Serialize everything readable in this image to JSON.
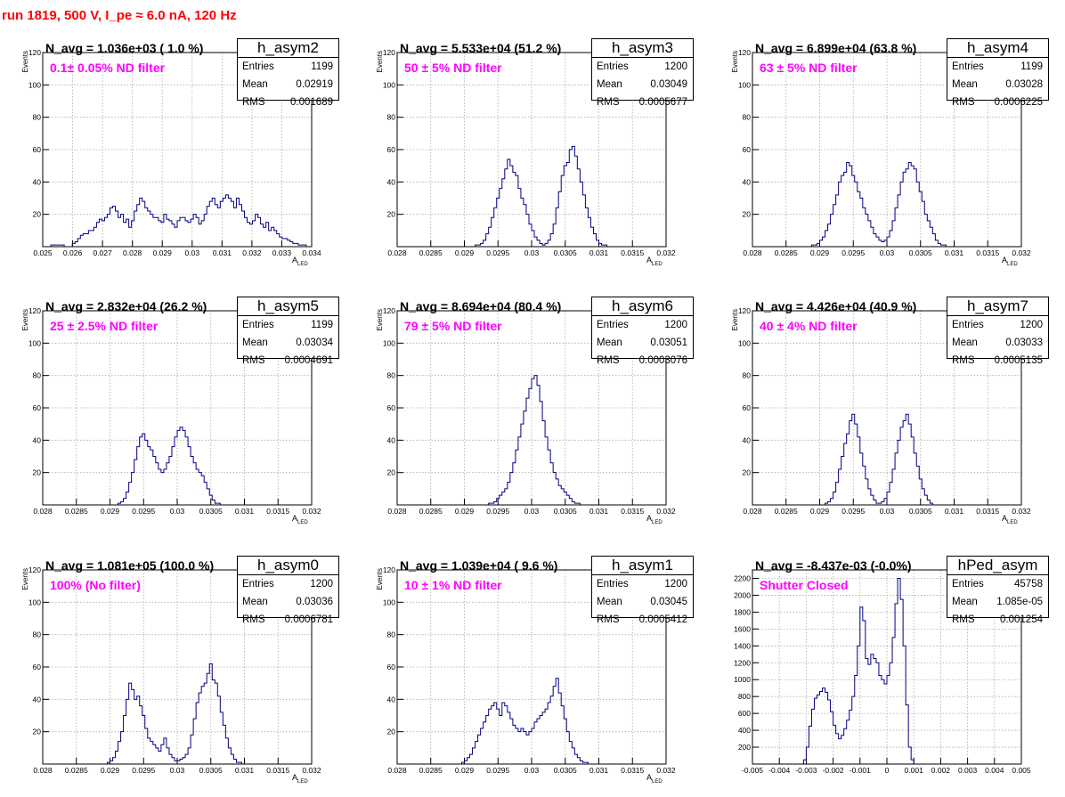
{
  "header": {
    "title": "run 1819,   500 V, I_pe ≈ 6.0 nA, 120 Hz"
  },
  "colors": {
    "hist": "#000080",
    "title": "#ff0000",
    "filter": "#ff00ff"
  },
  "chart_data": [
    {
      "type": "bar",
      "name": "h_asym2",
      "navg": "N_avg = 1.036e+03 ( 1.0 %)",
      "filter": "0.1± 0.05% ND filter",
      "stats": {
        "entries": "1199",
        "mean": "0.02919",
        "rms": "0.001689"
      },
      "ylabel": "Events",
      "xlabel": "A_LED",
      "xlim": [
        0.025,
        0.034
      ],
      "ylim": [
        0,
        120
      ],
      "xticks": [
        "0.025",
        "0.026",
        "0.027",
        "0.028",
        "0.029",
        "0.03",
        "0.031",
        "0.032",
        "0.033",
        "0.034"
      ],
      "yticks": [
        "20",
        "40",
        "60",
        "80",
        "100",
        "120"
      ],
      "bin_start": 0.025,
      "bin_width": 9e-05,
      "values": [
        0,
        0,
        0,
        1,
        1,
        1,
        1,
        1,
        0,
        0,
        0,
        2,
        3,
        5,
        7,
        8,
        8,
        10,
        10,
        12,
        15,
        17,
        16,
        18,
        20,
        24,
        25,
        22,
        18,
        20,
        15,
        17,
        12,
        16,
        22,
        26,
        30,
        28,
        24,
        22,
        20,
        18,
        18,
        16,
        15,
        20,
        17,
        16,
        14,
        12,
        16,
        18,
        18,
        16,
        15,
        17,
        20,
        18,
        14,
        16,
        20,
        25,
        28,
        30,
        26,
        24,
        28,
        30,
        32,
        30,
        28,
        24,
        30,
        26,
        22,
        18,
        15,
        14,
        16,
        20,
        18,
        14,
        12,
        15,
        10,
        12,
        10,
        8,
        6,
        5,
        5,
        4,
        3,
        2,
        2,
        1,
        1,
        1,
        0,
        0
      ]
    },
    {
      "type": "bar",
      "name": "h_asym3",
      "navg": "N_avg = 5.533e+04 (51.2 %)",
      "filter": "50 ± 5% ND filter",
      "stats": {
        "entries": "1200",
        "mean": "0.03049",
        "rms": "0.0005677"
      },
      "ylabel": "Events",
      "xlabel": "A_LED",
      "xlim": [
        0.028,
        0.032
      ],
      "ylim": [
        0,
        120
      ],
      "xticks": [
        "0.028",
        "0.0285",
        "0.029",
        "0.0295",
        "0.03",
        "0.0305",
        "0.031",
        "0.0315",
        "0.032"
      ],
      "yticks": [
        "20",
        "40",
        "60",
        "80",
        "100",
        "120"
      ],
      "bin_start": 0.028,
      "bin_width": 4e-05,
      "values": [
        0,
        0,
        0,
        0,
        0,
        0,
        0,
        0,
        0,
        0,
        0,
        0,
        0,
        0,
        0,
        0,
        0,
        0,
        0,
        0,
        0,
        0,
        0,
        0,
        0,
        0,
        0,
        0,
        0,
        1,
        1,
        2,
        4,
        8,
        12,
        18,
        24,
        30,
        36,
        42,
        48,
        54,
        50,
        46,
        44,
        36,
        30,
        26,
        20,
        14,
        10,
        6,
        4,
        2,
        1,
        2,
        4,
        8,
        14,
        24,
        34,
        44,
        50,
        52,
        60,
        62,
        56,
        48,
        40,
        32,
        24,
        18,
        12,
        8,
        4,
        2,
        1,
        1,
        0,
        0,
        0,
        0,
        0,
        0,
        0,
        0,
        0,
        0,
        0,
        0,
        0,
        0,
        0,
        0,
        0,
        0,
        0,
        0,
        0,
        0
      ]
    },
    {
      "type": "bar",
      "name": "h_asym4",
      "navg": "N_avg = 6.899e+04 (63.8 %)",
      "filter": "63 ± 5% ND filter",
      "stats": {
        "entries": "1199",
        "mean": "0.03028",
        "rms": "0.0006225"
      },
      "ylabel": "Events",
      "xlabel": "A_LED",
      "xlim": [
        0.028,
        0.032
      ],
      "ylim": [
        0,
        120
      ],
      "xticks": [
        "0.028",
        "0.0285",
        "0.029",
        "0.0295",
        "0.03",
        "0.0305",
        "0.031",
        "0.0315",
        "0.032"
      ],
      "yticks": [
        "20",
        "40",
        "60",
        "80",
        "100",
        "120"
      ],
      "bin_start": 0.028,
      "bin_width": 4e-05,
      "values": [
        0,
        0,
        0,
        0,
        0,
        0,
        0,
        0,
        0,
        0,
        0,
        0,
        0,
        0,
        0,
        0,
        0,
        0,
        0,
        0,
        0,
        0,
        1,
        1,
        2,
        4,
        6,
        10,
        14,
        20,
        26,
        32,
        40,
        44,
        46,
        52,
        50,
        44,
        40,
        34,
        30,
        24,
        20,
        16,
        12,
        8,
        6,
        4,
        3,
        4,
        6,
        10,
        16,
        24,
        32,
        40,
        46,
        48,
        52,
        50,
        48,
        40,
        34,
        28,
        20,
        16,
        12,
        8,
        4,
        2,
        1,
        1,
        0,
        0,
        0,
        0,
        0,
        0,
        0,
        0,
        0,
        0,
        0,
        0,
        0,
        0,
        0,
        0,
        0,
        0,
        0,
        0,
        0,
        0,
        0,
        0,
        0,
        0,
        0,
        0
      ]
    },
    {
      "type": "bar",
      "name": "h_asym5",
      "navg": "N_avg = 2.832e+04 (26.2 %)",
      "filter": "25 ± 2.5% ND filter",
      "stats": {
        "entries": "1199",
        "mean": "0.03034",
        "rms": "0.0004691"
      },
      "ylabel": "Events",
      "xlabel": "A_LED",
      "xlim": [
        0.028,
        0.032
      ],
      "ylim": [
        0,
        120
      ],
      "xticks": [
        "0.028",
        "0.0285",
        "0.029",
        "0.0295",
        "0.03",
        "0.0305",
        "0.031",
        "0.0315",
        "0.032"
      ],
      "yticks": [
        "20",
        "40",
        "60",
        "80",
        "100",
        "120"
      ],
      "bin_start": 0.028,
      "bin_width": 4e-05,
      "values": [
        0,
        0,
        0,
        0,
        0,
        0,
        0,
        0,
        0,
        0,
        0,
        0,
        0,
        0,
        0,
        0,
        0,
        0,
        0,
        0,
        0,
        0,
        0,
        0,
        0,
        0,
        0,
        0,
        1,
        2,
        4,
        8,
        14,
        20,
        28,
        36,
        42,
        44,
        40,
        36,
        34,
        30,
        26,
        22,
        20,
        22,
        26,
        30,
        36,
        42,
        46,
        48,
        46,
        42,
        36,
        30,
        26,
        22,
        20,
        18,
        14,
        10,
        6,
        3,
        1,
        1,
        0,
        0,
        0,
        0,
        0,
        0,
        0,
        0,
        0,
        0,
        0,
        0,
        0,
        0,
        0,
        0,
        0,
        0,
        0,
        0,
        0,
        0,
        0,
        0,
        0,
        0,
        0,
        0,
        0,
        0,
        0,
        0,
        0,
        0
      ]
    },
    {
      "type": "bar",
      "name": "h_asym6",
      "navg": "N_avg = 8.694e+04 (80.4 %)",
      "filter": "79 ± 5% ND filter",
      "stats": {
        "entries": "1200",
        "mean": "0.03051",
        "rms": "0.0003076"
      },
      "ylabel": "Events",
      "xlabel": "A_LED",
      "xlim": [
        0.028,
        0.032
      ],
      "ylim": [
        0,
        120
      ],
      "xticks": [
        "0.028",
        "0.0285",
        "0.029",
        "0.0295",
        "0.03",
        "0.0305",
        "0.031",
        "0.0315",
        "0.032"
      ],
      "yticks": [
        "20",
        "40",
        "60",
        "80",
        "100",
        "120"
      ],
      "bin_start": 0.028,
      "bin_width": 4e-05,
      "values": [
        0,
        0,
        0,
        0,
        0,
        0,
        0,
        0,
        0,
        0,
        0,
        0,
        0,
        0,
        0,
        0,
        0,
        0,
        0,
        0,
        0,
        0,
        0,
        0,
        0,
        0,
        0,
        0,
        0,
        0,
        0,
        0,
        0,
        0,
        1,
        1,
        2,
        4,
        6,
        8,
        10,
        14,
        20,
        26,
        34,
        42,
        50,
        58,
        66,
        72,
        78,
        80,
        74,
        64,
        52,
        42,
        34,
        26,
        20,
        16,
        12,
        10,
        8,
        6,
        4,
        2,
        1,
        1,
        0,
        0,
        0,
        0,
        0,
        0,
        0,
        0,
        0,
        0,
        0,
        0,
        0,
        0,
        0,
        0,
        0,
        0,
        0,
        0,
        0,
        0,
        0,
        0,
        0,
        0,
        0,
        0,
        0,
        0,
        0,
        0
      ]
    },
    {
      "type": "bar",
      "name": "h_asym7",
      "navg": "N_avg = 4.426e+04 (40.9 %)",
      "filter": "40 ± 4% ND filter",
      "stats": {
        "entries": "1200",
        "mean": "0.03033",
        "rms": "0.0005135"
      },
      "ylabel": "Events",
      "xlabel": "A_LED",
      "xlim": [
        0.028,
        0.032
      ],
      "ylim": [
        0,
        120
      ],
      "xticks": [
        "0.028",
        "0.0285",
        "0.029",
        "0.0295",
        "0.03",
        "0.0305",
        "0.031",
        "0.0315",
        "0.032"
      ],
      "yticks": [
        "20",
        "40",
        "60",
        "80",
        "100",
        "120"
      ],
      "bin_start": 0.028,
      "bin_width": 4e-05,
      "values": [
        0,
        0,
        0,
        0,
        0,
        0,
        0,
        0,
        0,
        0,
        0,
        0,
        0,
        0,
        0,
        0,
        0,
        0,
        0,
        0,
        0,
        0,
        0,
        0,
        0,
        0,
        0,
        1,
        2,
        4,
        8,
        14,
        22,
        30,
        38,
        44,
        52,
        56,
        50,
        42,
        32,
        24,
        16,
        10,
        6,
        3,
        1,
        1,
        2,
        4,
        8,
        14,
        22,
        32,
        40,
        48,
        52,
        56,
        50,
        42,
        32,
        24,
        16,
        10,
        6,
        3,
        1,
        0,
        0,
        0,
        0,
        0,
        0,
        0,
        0,
        0,
        0,
        0,
        0,
        0,
        0,
        0,
        0,
        0,
        0,
        0,
        0,
        0,
        0,
        0,
        0,
        0,
        0,
        0,
        0,
        0,
        0,
        0,
        0,
        0
      ]
    },
    {
      "type": "bar",
      "name": "h_asym0",
      "navg": "N_avg = 1.081e+05 (100.0 %)",
      "filter": "100% (No filter)",
      "stats": {
        "entries": "1200",
        "mean": "0.03036",
        "rms": "0.0006781"
      },
      "ylabel": "Events",
      "xlabel": "A_LED",
      "xlim": [
        0.028,
        0.032
      ],
      "ylim": [
        0,
        120
      ],
      "xticks": [
        "0.028",
        "0.0285",
        "0.029",
        "0.0295",
        "0.03",
        "0.0305",
        "0.031",
        "0.0315",
        "0.032"
      ],
      "yticks": [
        "20",
        "40",
        "60",
        "80",
        "100",
        "120"
      ],
      "bin_start": 0.028,
      "bin_width": 4e-05,
      "values": [
        0,
        0,
        0,
        0,
        0,
        0,
        0,
        0,
        0,
        0,
        0,
        0,
        0,
        0,
        0,
        0,
        0,
        0,
        0,
        0,
        0,
        0,
        0,
        0,
        1,
        2,
        4,
        8,
        14,
        20,
        30,
        40,
        50,
        46,
        40,
        42,
        36,
        30,
        22,
        16,
        14,
        12,
        10,
        8,
        12,
        16,
        10,
        6,
        4,
        2,
        2,
        3,
        4,
        6,
        10,
        18,
        28,
        38,
        44,
        48,
        50,
        56,
        62,
        52,
        50,
        42,
        32,
        24,
        16,
        10,
        6,
        3,
        1,
        1,
        0,
        0,
        0,
        0,
        0,
        0,
        0,
        0,
        0,
        0,
        0,
        0,
        0,
        0,
        0,
        0,
        0,
        0,
        0,
        0,
        0,
        0,
        0,
        0,
        0,
        0
      ]
    },
    {
      "type": "bar",
      "name": "h_asym1",
      "navg": "N_avg = 1.039e+04 ( 9.6 %)",
      "filter": "10 ± 1% ND filter",
      "stats": {
        "entries": "1200",
        "mean": "0.03045",
        "rms": "0.0005412"
      },
      "ylabel": "Events",
      "xlabel": "A_LED",
      "xlim": [
        0.028,
        0.032
      ],
      "ylim": [
        0,
        120
      ],
      "xticks": [
        "0.028",
        "0.0285",
        "0.029",
        "0.0295",
        "0.03",
        "0.0305",
        "0.031",
        "0.0315",
        "0.032"
      ],
      "yticks": [
        "20",
        "40",
        "60",
        "80",
        "100",
        "120"
      ],
      "bin_start": 0.028,
      "bin_width": 4e-05,
      "values": [
        0,
        0,
        0,
        0,
        0,
        0,
        0,
        0,
        0,
        0,
        0,
        0,
        0,
        0,
        0,
        0,
        0,
        0,
        0,
        0,
        0,
        0,
        0,
        0,
        1,
        2,
        4,
        6,
        10,
        14,
        18,
        22,
        26,
        30,
        34,
        36,
        38,
        34,
        30,
        38,
        36,
        32,
        28,
        24,
        22,
        20,
        22,
        20,
        18,
        20,
        22,
        26,
        28,
        30,
        32,
        34,
        38,
        42,
        48,
        53,
        44,
        36,
        28,
        20,
        14,
        10,
        6,
        4,
        2,
        1,
        1,
        0,
        0,
        0,
        0,
        0,
        0,
        0,
        0,
        0,
        0,
        0,
        0,
        0,
        0,
        0,
        0,
        0,
        0,
        0,
        0,
        0,
        0,
        0,
        0,
        0,
        0,
        0,
        0,
        0
      ]
    },
    {
      "type": "bar",
      "name": "hPed_asym",
      "navg": "N_avg = -8.437e-03 (-0.0%)",
      "filter": "Shutter Closed",
      "stats": {
        "entries": "45758",
        "mean": "1.085e-05",
        "rms": "0.001254"
      },
      "ylabel": "",
      "xlabel": "",
      "xlim": [
        -0.005,
        0.005
      ],
      "ylim": [
        0,
        2300
      ],
      "xticks": [
        "-0.005",
        "-0.004",
        "-0.003",
        "-0.002",
        "-0.001",
        "0",
        "0.001",
        "0.002",
        "0.003",
        "0.004",
        "0.005"
      ],
      "yticks": [
        "200",
        "400",
        "600",
        "800",
        "1000",
        "1200",
        "1400",
        "1600",
        "1800",
        "2000",
        "2200"
      ],
      "bin_start": -0.005,
      "bin_width": 0.0001,
      "values": [
        0,
        0,
        0,
        0,
        0,
        0,
        0,
        0,
        0,
        0,
        0,
        0,
        0,
        0,
        0,
        0,
        0,
        0,
        0,
        50,
        200,
        450,
        650,
        780,
        820,
        860,
        900,
        850,
        760,
        620,
        460,
        360,
        300,
        340,
        420,
        520,
        640,
        800,
        1050,
        1400,
        1860,
        1700,
        1250,
        1180,
        1300,
        1250,
        1200,
        1050,
        1000,
        950,
        1050,
        1200,
        1500,
        1900,
        2200,
        1950,
        1400,
        700,
        200,
        50,
        0,
        0,
        0,
        0,
        0,
        0,
        0,
        0,
        0,
        0,
        0,
        0,
        0,
        0,
        0,
        0,
        0,
        0,
        0,
        0,
        0,
        0,
        0,
        0,
        0,
        0,
        0,
        0,
        0,
        0,
        0,
        0,
        0,
        0,
        0,
        0,
        0,
        0,
        0,
        0
      ]
    }
  ]
}
